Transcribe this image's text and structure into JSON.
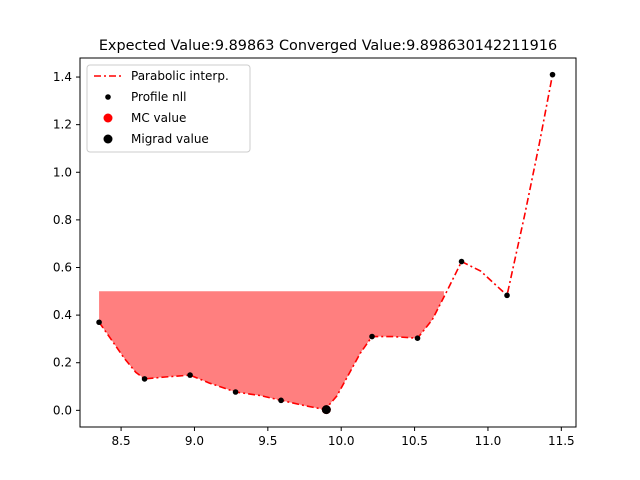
{
  "chart_data": {
    "type": "line",
    "title": "Expected Value:9.89863 Converged Value:9.898630142211916",
    "xlabel": "",
    "ylabel": "",
    "xlim": [
      8.22,
      11.6
    ],
    "ylim": [
      -0.07,
      1.48
    ],
    "xticks": [
      8.5,
      9.0,
      9.5,
      10.0,
      10.5,
      11.0,
      11.5
    ],
    "xtick_labels": [
      "8.5",
      "9.0",
      "9.5",
      "10.0",
      "10.5",
      "11.0",
      "11.5"
    ],
    "yticks": [
      0.0,
      0.2,
      0.4,
      0.6,
      0.8,
      1.0,
      1.2,
      1.4
    ],
    "ytick_labels": [
      "0.0",
      "0.2",
      "0.4",
      "0.6",
      "0.8",
      "1.0",
      "1.2",
      "1.4"
    ],
    "grid": false,
    "legend_position": "top-left",
    "series": [
      {
        "name": "Parabolic interp.",
        "kind": "line",
        "style": "dash-dot",
        "color": "#ff0000",
        "x": [
          8.35,
          8.43,
          8.52,
          8.6,
          8.66,
          8.8,
          8.97,
          9.1,
          9.28,
          9.45,
          9.59,
          9.75,
          9.89,
          9.97,
          10.05,
          10.13,
          10.21,
          10.35,
          10.52,
          10.62,
          10.72,
          10.82,
          10.95,
          11.13,
          11.25,
          11.35,
          11.44
        ],
        "y": [
          0.37,
          0.3,
          0.22,
          0.16,
          0.132,
          0.14,
          0.148,
          0.115,
          0.077,
          0.062,
          0.042,
          0.02,
          0.003,
          0.06,
          0.15,
          0.24,
          0.31,
          0.31,
          0.303,
          0.38,
          0.5,
          0.625,
          0.585,
          0.483,
          0.82,
          1.12,
          1.41
        ]
      },
      {
        "name": "Profile nll",
        "kind": "points",
        "color": "#000000",
        "x": [
          8.35,
          8.66,
          8.97,
          9.28,
          9.59,
          9.89,
          10.21,
          10.52,
          10.82,
          11.13,
          11.44
        ],
        "y": [
          0.37,
          0.132,
          0.148,
          0.077,
          0.042,
          0.003,
          0.31,
          0.303,
          0.625,
          0.483,
          1.41
        ]
      },
      {
        "name": "MC value",
        "kind": "marker",
        "color": "#ff0000",
        "x": [
          9.89863
        ],
        "y": [
          0.003
        ]
      },
      {
        "name": "Migrad value",
        "kind": "marker",
        "color": "#000000",
        "x": [
          9.89863
        ],
        "y": [
          0.003
        ]
      }
    ],
    "shaded_region": {
      "color": "#ff0000",
      "alpha": 0.5,
      "level": 0.5,
      "x_from": 8.35,
      "x_to": 10.7
    }
  }
}
